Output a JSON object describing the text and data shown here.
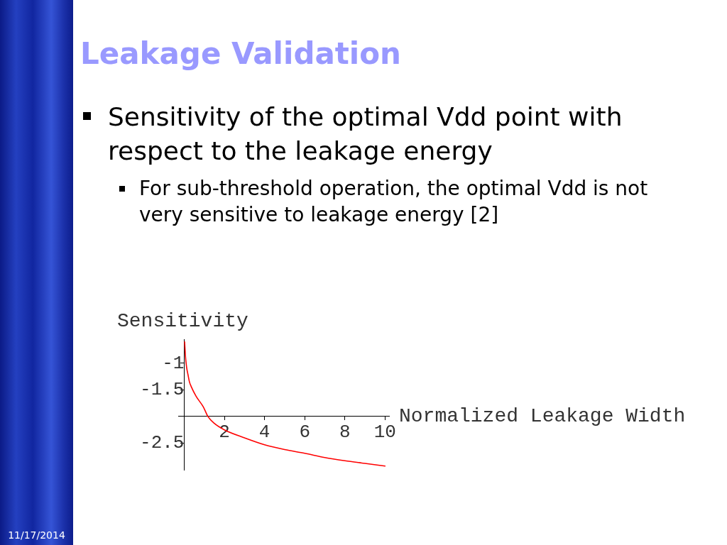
{
  "chart_data": {
    "type": "line",
    "title": "Leakage Validation",
    "subtitle": "Sensitivity of the optimal Vdd point with respect to the leakage energy",
    "annotations": [
      "For sub-threshold operation, the optimal Vdd is not very sensitive to leakage energy [2]",
      "11/17/2014"
    ],
    "xlabel": "Normalized Leakage Width",
    "ylabel": "Sensitivity",
    "x": [
      0.02,
      0.06,
      0.12,
      0.18,
      0.26,
      0.35,
      0.59,
      0.95,
      1.18,
      1.5,
      2,
      3,
      4,
      5,
      6,
      7,
      8,
      9,
      10
    ],
    "series": [
      {
        "color": "#ff0000",
        "values": [
          -0.6,
          -0.86,
          -1.08,
          -1.2,
          -1.35,
          -1.44,
          -1.62,
          -1.82,
          -2,
          -2.13,
          -2.25,
          -2.4,
          -2.53,
          -2.62,
          -2.69,
          -2.77,
          -2.83,
          -2.88,
          -2.93
        ]
      }
    ],
    "xlim": [
      -0.3,
      10.2
    ],
    "ylim": [
      -3,
      -0.55
    ],
    "xticks": [
      {
        "value": 0,
        "label": null
      },
      2,
      4,
      6,
      8,
      10
    ],
    "yticks": [
      -2.5,
      {
        "value": -2,
        "label": null
      },
      -1.5,
      -1
    ],
    "marker": "none"
  }
}
